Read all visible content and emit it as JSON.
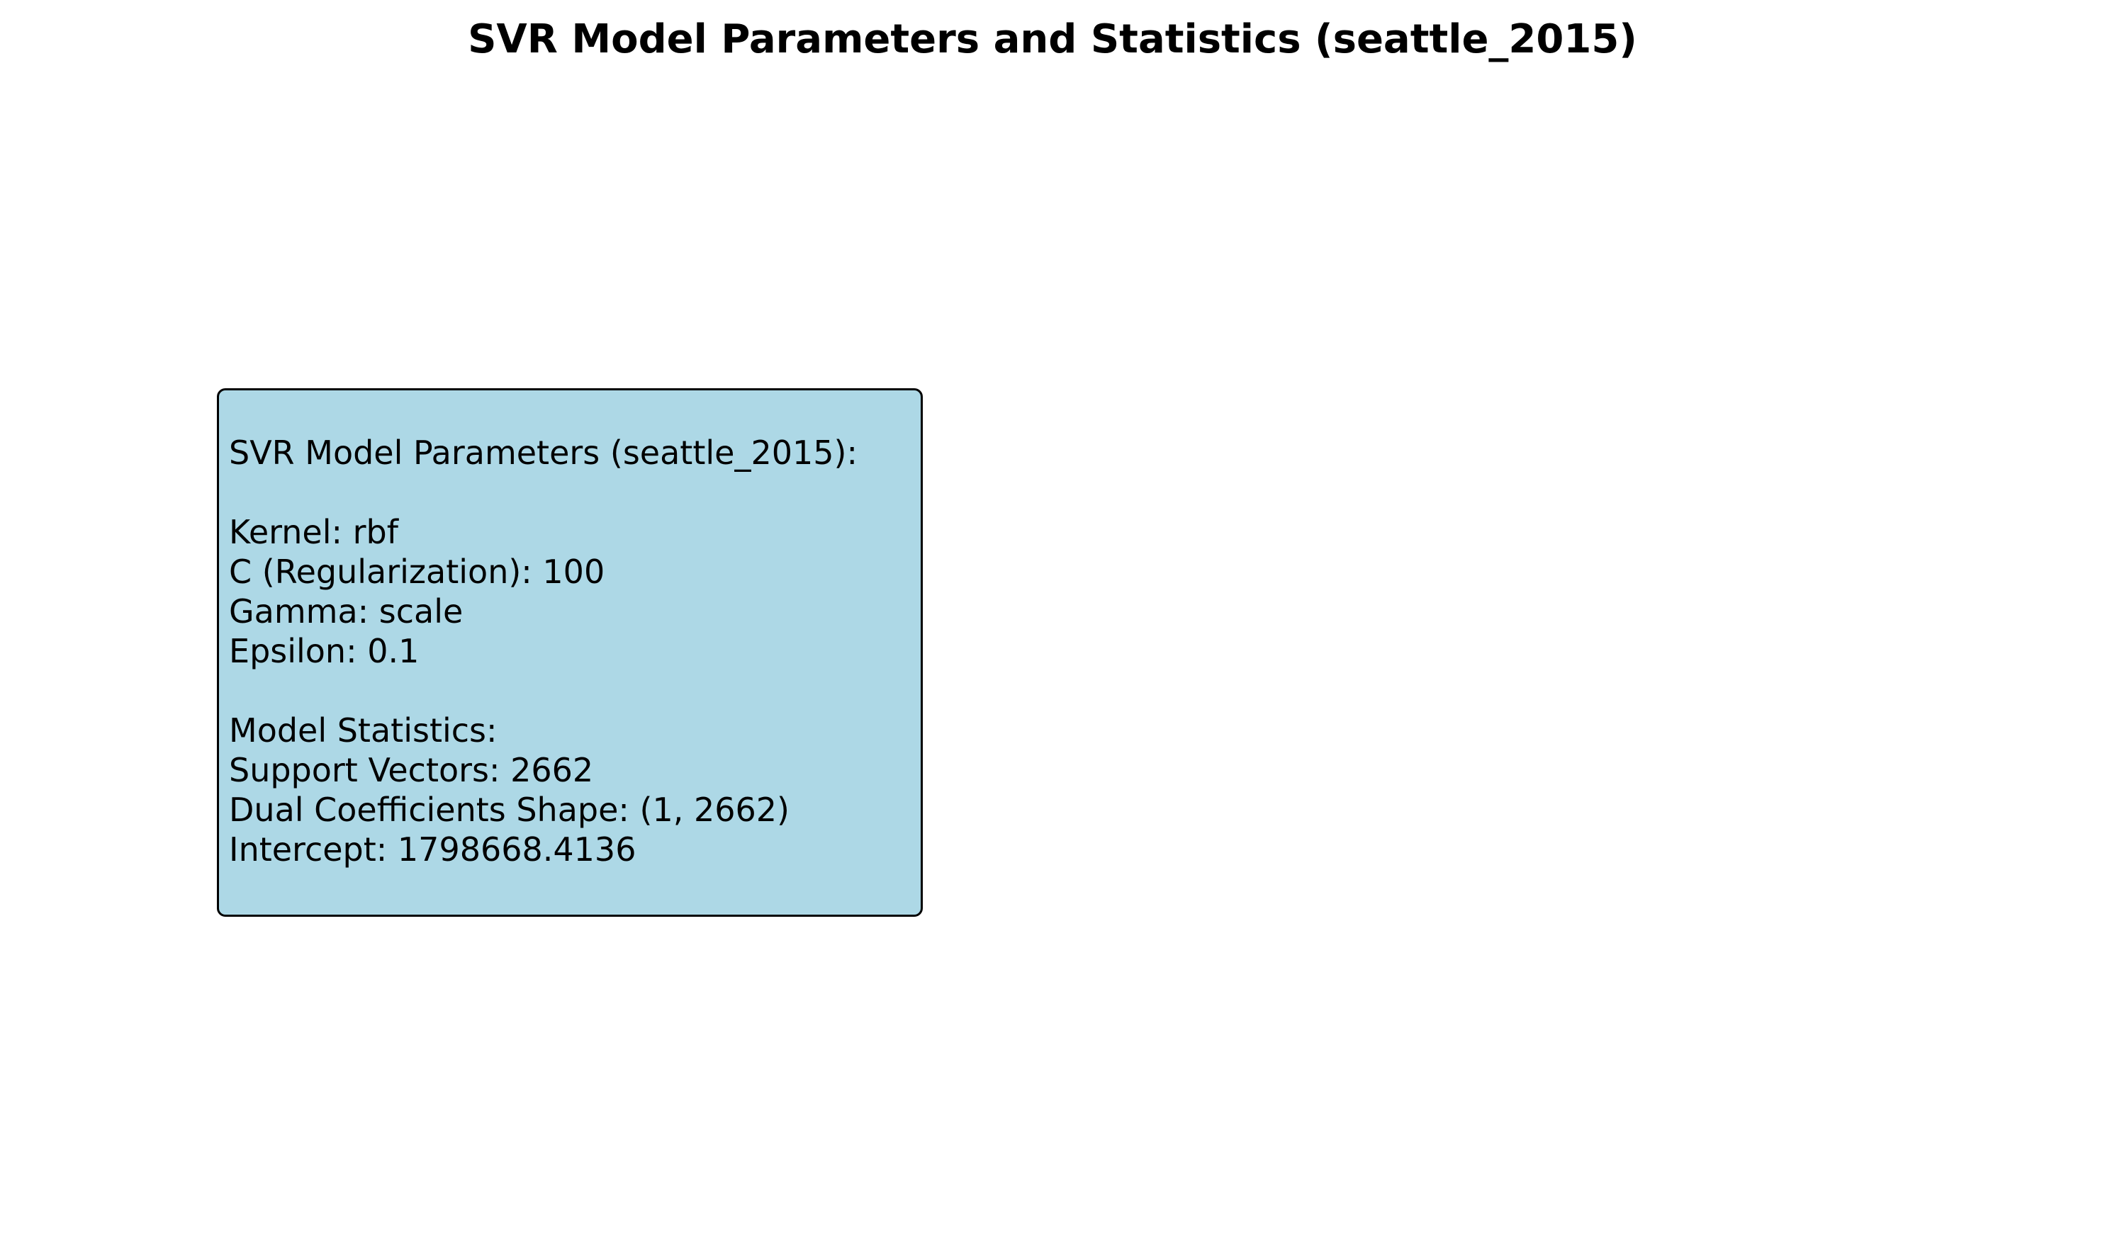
{
  "figure": {
    "title": "SVR Model Parameters and Statistics (seattle_2015)"
  },
  "info_box": {
    "background_color": "#add8e6",
    "border_color": "#000000",
    "heading": "SVR Model Parameters (seattle_2015):",
    "parameters": {
      "kernel": "Kernel: rbf",
      "c": "C (Regularization): 100",
      "gamma": "Gamma: scale",
      "epsilon": "Epsilon: 0.1"
    },
    "statistics_heading": "Model Statistics:",
    "statistics": {
      "support_vectors": "Support Vectors: 2662",
      "dual_coef_shape": "Dual Coefficients Shape: (1, 2662)",
      "intercept": "Intercept: 1798668.4136"
    }
  }
}
